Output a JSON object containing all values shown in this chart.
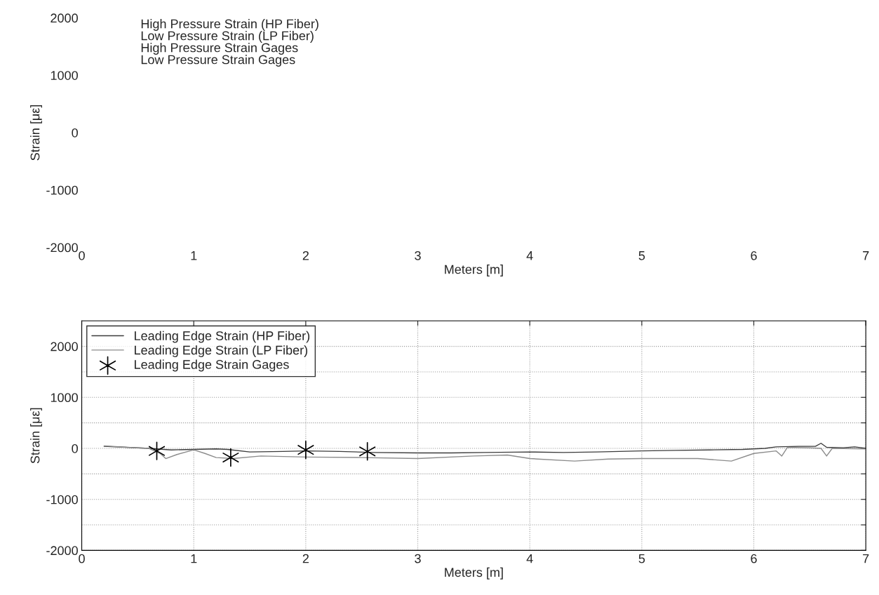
{
  "chart_data": [
    {
      "type": "line",
      "xlabel": "Meters [m]",
      "ylabel": "Strain [με]",
      "xlim": [
        0,
        7
      ],
      "xticks": [
        0,
        1,
        2,
        3,
        4,
        5,
        6,
        7
      ],
      "ylim": [
        -2000,
        2000
      ],
      "yticks": [
        -2000,
        -1000,
        0,
        1000,
        2000
      ],
      "grid": false,
      "annotations": [
        "High Pressure Strain (HP Fiber)",
        "Low Pressure Strain (LP Fiber)",
        "High Pressure Strain Gages",
        "Low Pressure Strain Gages"
      ]
    },
    {
      "type": "line",
      "xlabel": "Meters [m]",
      "ylabel": "Strain [με]",
      "xlim": [
        0,
        7
      ],
      "xticks": [
        0,
        1,
        2,
        3,
        4,
        5,
        6,
        7
      ],
      "ylim": [
        -2000,
        2500
      ],
      "yticks": [
        -2000,
        {
          "value": -1500,
          "label": null
        },
        -1000,
        {
          "value": -500,
          "label": null
        },
        0,
        {
          "value": 500,
          "label": null
        },
        1000,
        {
          "value": 1500,
          "label": null
        },
        2000
      ],
      "grid": true,
      "legend": "top left",
      "line_style": "solid",
      "series": [
        {
          "name": "Leading Edge Strain (HP Fiber)",
          "color": "#3c3c3c",
          "x": [
            0.2,
            0.4,
            0.6,
            0.8,
            1.0,
            1.2,
            1.3,
            1.5,
            1.8,
            2.0,
            2.3,
            2.6,
            3.0,
            3.3,
            3.6,
            4.0,
            4.3,
            4.6,
            5.0,
            5.3,
            5.6,
            5.9,
            6.1,
            6.2,
            6.4,
            6.55,
            6.6,
            6.65,
            6.8,
            6.9,
            7.0
          ],
          "values": [
            40,
            20,
            0,
            -30,
            -20,
            -10,
            -20,
            -70,
            -60,
            -50,
            -60,
            -80,
            -90,
            -90,
            -80,
            -70,
            -80,
            -70,
            -50,
            -40,
            -30,
            -20,
            0,
            30,
            40,
            40,
            100,
            20,
            10,
            30,
            0
          ]
        },
        {
          "name": "Leading Edge Strain (LP Fiber)",
          "color": "#8c8c8c",
          "x": [
            0.2,
            0.4,
            0.6,
            0.7,
            0.75,
            0.85,
            1.0,
            1.1,
            1.2,
            1.35,
            1.6,
            2.0,
            2.5,
            3.0,
            3.5,
            3.8,
            4.0,
            4.4,
            4.7,
            5.0,
            5.5,
            5.8,
            6.0,
            6.2,
            6.25,
            6.3,
            6.5,
            6.6,
            6.65,
            6.7,
            7.0
          ],
          "values": [
            50,
            20,
            0,
            -100,
            -200,
            -120,
            -30,
            -100,
            -180,
            -200,
            -150,
            -170,
            -180,
            -200,
            -150,
            -130,
            -200,
            -250,
            -210,
            -200,
            -200,
            -250,
            -100,
            -50,
            -150,
            20,
            10,
            0,
            -150,
            0,
            -10
          ]
        },
        {
          "name": "Leading Edge Strain Gages",
          "type": "scatter",
          "color": "#000000",
          "marker": "cross",
          "x": [
            0.67,
            1.33,
            2.0,
            2.55
          ],
          "values": [
            -50,
            -180,
            -30,
            -60
          ]
        }
      ]
    }
  ]
}
